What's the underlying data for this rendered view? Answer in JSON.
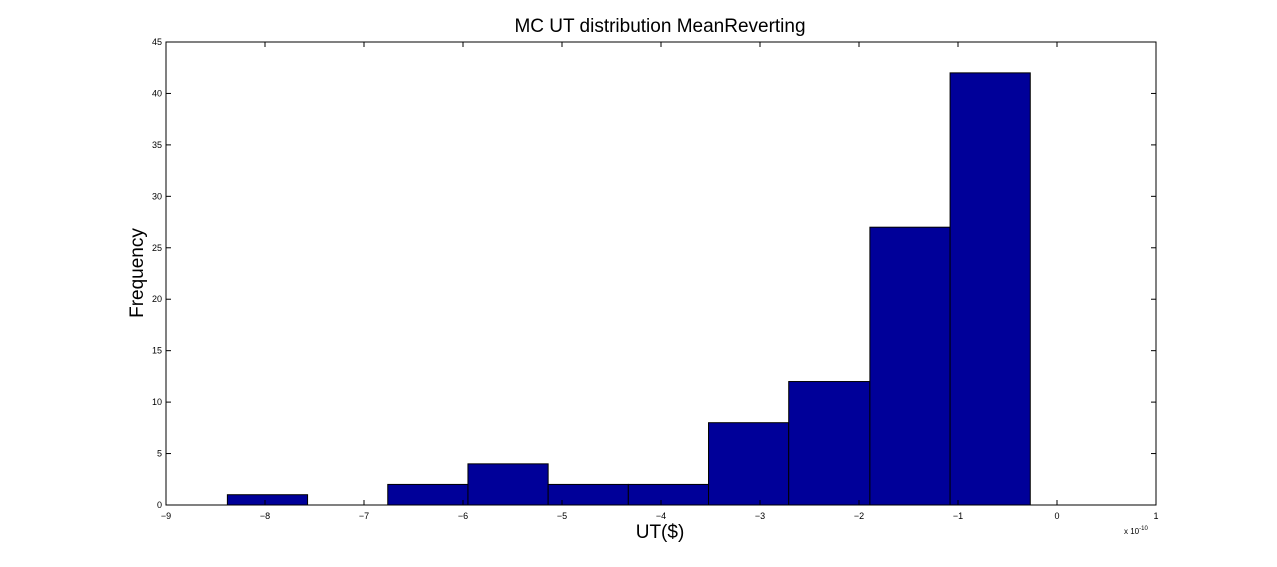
{
  "chart_data": {
    "type": "bar",
    "title": "MC UT distribution MeanReverting",
    "xlabel": "UT($)",
    "ylabel": "Frequency",
    "x_multiplier_label": "x 10",
    "x_multiplier_exponent": "-10",
    "xlim": [
      -9,
      1
    ],
    "ylim": [
      0,
      45
    ],
    "x_ticks": [
      -9,
      -8,
      -7,
      -6,
      -5,
      -4,
      -3,
      -2,
      -1,
      0,
      1
    ],
    "x_tick_labels": [
      "−9",
      "−8",
      "−7",
      "−6",
      "−5",
      "−4",
      "−3",
      "−2",
      "−1",
      "0",
      "1"
    ],
    "y_ticks": [
      0,
      5,
      10,
      15,
      20,
      25,
      30,
      35,
      40,
      45
    ],
    "y_tick_labels": [
      "0",
      "5",
      "10",
      "15",
      "20",
      "25",
      "30",
      "35",
      "40",
      "45"
    ],
    "bin_edges": [
      -8.38,
      -7.57,
      -6.76,
      -5.95,
      -5.14,
      -4.33,
      -3.52,
      -2.71,
      -1.89,
      -1.08,
      -0.27
    ],
    "counts": [
      1,
      0,
      2,
      4,
      2,
      2,
      8,
      12,
      27,
      42
    ],
    "bar_color": "#000099",
    "bar_edge_color": "#000000",
    "grid": false
  }
}
